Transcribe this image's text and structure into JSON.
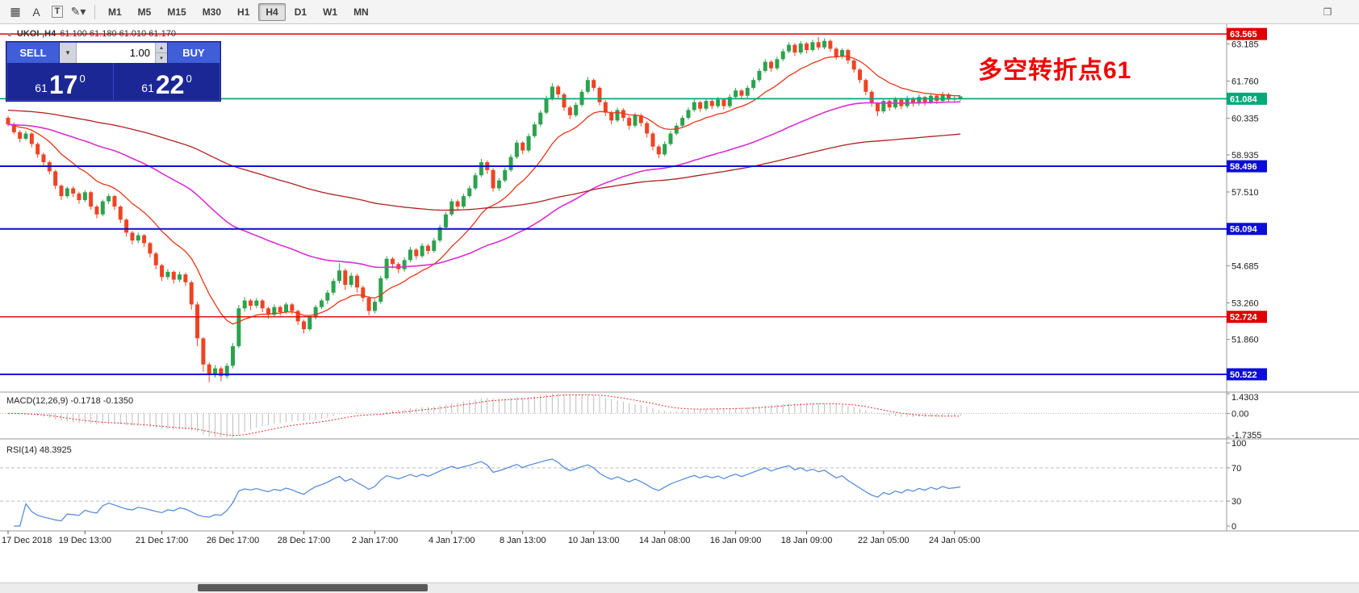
{
  "toolbar": {
    "icons": [
      {
        "name": "chart-grid-icon",
        "glyph": "▦",
        "boxed": false
      },
      {
        "name": "text-label-tool-icon",
        "glyph": "A",
        "boxed": false
      },
      {
        "name": "text-box-tool-icon",
        "glyph": "T",
        "boxed": true
      },
      {
        "name": "draw-tool-icon",
        "glyph": "✎▾",
        "boxed": false
      }
    ],
    "timeframes": [
      {
        "label": "M1",
        "active": false
      },
      {
        "label": "M5",
        "active": false
      },
      {
        "label": "M15",
        "active": false
      },
      {
        "label": "M30",
        "active": false
      },
      {
        "label": "H1",
        "active": false
      },
      {
        "label": "H4",
        "active": true
      },
      {
        "label": "D1",
        "active": false
      },
      {
        "label": "W1",
        "active": false
      },
      {
        "label": "MN",
        "active": false
      }
    ],
    "window_icon": "❐"
  },
  "chart": {
    "symbol": "UKOI-,H4",
    "marker_icon": "▲",
    "ohlc_text": "61.100 61.180 61.010 61.170",
    "annotation": "多空转折点61",
    "annotation_color": "#f20000",
    "trade_widget": {
      "sell_label": "SELL",
      "buy_label": "BUY",
      "volume": "1.00",
      "combo_icon": "▾",
      "up_icon": "▴",
      "down_icon": "▾",
      "sell_price": {
        "small": "61",
        "big": "17",
        "sup": "0"
      },
      "buy_price": {
        "small": "61",
        "big": "22",
        "sup": "0"
      }
    }
  },
  "chart_data": {
    "type": "candlestick",
    "symbol": "UKOI-,H4",
    "timeframe": "H4",
    "ylim": [
      49.84,
      63.94
    ],
    "candle_colors": {
      "up": "#2ca24e",
      "down": "#ef4323"
    },
    "candles": [
      [
        60.35,
        60.42,
        60.02,
        60.1
      ],
      [
        60.1,
        60.18,
        59.72,
        59.8
      ],
      [
        59.8,
        59.88,
        59.42,
        59.55
      ],
      [
        59.55,
        59.85,
        59.48,
        59.75
      ],
      [
        59.75,
        59.8,
        59.22,
        59.35
      ],
      [
        59.35,
        59.42,
        58.82,
        58.95
      ],
      [
        58.95,
        59.02,
        58.52,
        58.65
      ],
      [
        58.65,
        58.72,
        58.18,
        58.3
      ],
      [
        58.3,
        58.36,
        57.62,
        57.75
      ],
      [
        57.75,
        57.8,
        57.2,
        57.35
      ],
      [
        57.35,
        57.72,
        57.28,
        57.65
      ],
      [
        57.65,
        57.73,
        57.32,
        57.45
      ],
      [
        57.45,
        57.52,
        57.06,
        57.2
      ],
      [
        57.2,
        57.58,
        57.12,
        57.5
      ],
      [
        57.5,
        57.55,
        56.82,
        56.95
      ],
      [
        56.95,
        57.02,
        56.5,
        56.65
      ],
      [
        56.65,
        57.22,
        56.58,
        57.15
      ],
      [
        57.15,
        57.44,
        57.05,
        57.35
      ],
      [
        57.35,
        57.4,
        56.82,
        56.95
      ],
      [
        56.95,
        57.0,
        56.32,
        56.45
      ],
      [
        56.45,
        56.5,
        55.8,
        55.95
      ],
      [
        55.95,
        56.02,
        55.5,
        55.65
      ],
      [
        55.65,
        55.95,
        55.55,
        55.85
      ],
      [
        55.85,
        55.9,
        55.4,
        55.55
      ],
      [
        55.55,
        55.6,
        55.0,
        55.15
      ],
      [
        55.15,
        55.22,
        54.55,
        54.7
      ],
      [
        54.7,
        54.76,
        54.1,
        54.25
      ],
      [
        54.25,
        54.55,
        54.15,
        54.45
      ],
      [
        54.45,
        54.5,
        54.0,
        54.15
      ],
      [
        54.15,
        54.46,
        54.05,
        54.35
      ],
      [
        54.35,
        54.42,
        53.9,
        54.05
      ],
      [
        54.05,
        54.12,
        53.0,
        53.2
      ],
      [
        53.2,
        53.3,
        51.6,
        51.9
      ],
      [
        51.9,
        51.95,
        50.62,
        50.9
      ],
      [
        50.9,
        50.98,
        50.22,
        50.55
      ],
      [
        50.55,
        50.88,
        50.4,
        50.75
      ],
      [
        50.75,
        50.82,
        50.25,
        50.45
      ],
      [
        50.45,
        50.95,
        50.35,
        50.85
      ],
      [
        50.85,
        51.72,
        50.75,
        51.6
      ],
      [
        51.6,
        53.18,
        51.52,
        53.05
      ],
      [
        53.05,
        53.48,
        52.92,
        53.35
      ],
      [
        53.35,
        53.42,
        52.98,
        53.15
      ],
      [
        53.15,
        53.45,
        53.05,
        53.35
      ],
      [
        53.35,
        53.4,
        52.9,
        53.05
      ],
      [
        53.05,
        53.12,
        52.65,
        52.8
      ],
      [
        52.8,
        53.2,
        52.72,
        53.1
      ],
      [
        53.1,
        53.16,
        52.76,
        52.9
      ],
      [
        52.9,
        53.28,
        52.82,
        53.2
      ],
      [
        53.2,
        53.26,
        52.82,
        52.95
      ],
      [
        52.95,
        53.0,
        52.42,
        52.55
      ],
      [
        52.55,
        52.62,
        52.08,
        52.25
      ],
      [
        52.25,
        52.78,
        52.18,
        52.7
      ],
      [
        52.7,
        53.18,
        52.62,
        53.1
      ],
      [
        53.1,
        53.42,
        53.02,
        53.35
      ],
      [
        53.35,
        53.75,
        53.22,
        53.65
      ],
      [
        53.65,
        54.2,
        53.55,
        54.1
      ],
      [
        54.1,
        54.78,
        54.0,
        54.5
      ],
      [
        54.5,
        54.58,
        53.75,
        53.95
      ],
      [
        53.95,
        54.42,
        53.85,
        54.3
      ],
      [
        54.3,
        54.38,
        53.66,
        53.85
      ],
      [
        53.85,
        53.92,
        53.3,
        53.45
      ],
      [
        53.45,
        53.52,
        52.78,
        52.95
      ],
      [
        52.95,
        53.4,
        52.85,
        53.3
      ],
      [
        53.3,
        54.3,
        53.22,
        54.2
      ],
      [
        54.2,
        55.05,
        54.12,
        54.95
      ],
      [
        54.95,
        55.02,
        54.58,
        54.75
      ],
      [
        54.75,
        54.82,
        54.4,
        54.55
      ],
      [
        54.55,
        55.0,
        54.45,
        54.9
      ],
      [
        54.9,
        55.4,
        54.82,
        55.3
      ],
      [
        55.3,
        55.36,
        54.92,
        55.05
      ],
      [
        55.05,
        55.55,
        54.98,
        55.45
      ],
      [
        55.45,
        55.52,
        55.12,
        55.25
      ],
      [
        55.25,
        55.75,
        55.18,
        55.65
      ],
      [
        55.65,
        56.25,
        55.58,
        56.15
      ],
      [
        56.15,
        56.75,
        56.08,
        56.65
      ],
      [
        56.65,
        57.25,
        56.58,
        57.15
      ],
      [
        57.15,
        57.22,
        56.8,
        56.95
      ],
      [
        56.95,
        57.45,
        56.88,
        57.35
      ],
      [
        57.35,
        57.75,
        57.28,
        57.65
      ],
      [
        57.65,
        58.25,
        57.58,
        58.15
      ],
      [
        58.15,
        58.78,
        58.08,
        58.65
      ],
      [
        58.65,
        58.72,
        58.2,
        58.35
      ],
      [
        58.35,
        58.42,
        57.52,
        57.65
      ],
      [
        57.65,
        58.05,
        57.55,
        57.95
      ],
      [
        57.95,
        58.45,
        57.88,
        58.35
      ],
      [
        58.35,
        58.95,
        58.28,
        58.85
      ],
      [
        58.85,
        59.5,
        58.78,
        59.4
      ],
      [
        59.4,
        59.46,
        58.95,
        59.1
      ],
      [
        59.1,
        59.75,
        59.02,
        59.65
      ],
      [
        59.65,
        60.2,
        59.58,
        60.1
      ],
      [
        60.1,
        60.65,
        60.02,
        60.55
      ],
      [
        60.55,
        61.2,
        60.48,
        61.1
      ],
      [
        61.1,
        61.68,
        61.02,
        61.55
      ],
      [
        61.55,
        61.62,
        61.1,
        61.25
      ],
      [
        61.25,
        61.32,
        60.62,
        60.75
      ],
      [
        60.75,
        60.82,
        60.3,
        60.45
      ],
      [
        60.45,
        60.95,
        60.38,
        60.85
      ],
      [
        60.85,
        61.45,
        60.78,
        61.35
      ],
      [
        61.35,
        61.92,
        61.28,
        61.8
      ],
      [
        61.8,
        61.86,
        61.38,
        61.5
      ],
      [
        61.5,
        61.56,
        60.82,
        60.95
      ],
      [
        60.95,
        61.02,
        60.42,
        60.55
      ],
      [
        60.55,
        60.62,
        60.1,
        60.25
      ],
      [
        60.25,
        60.75,
        60.18,
        60.65
      ],
      [
        60.65,
        60.72,
        60.22,
        60.35
      ],
      [
        60.35,
        60.42,
        59.9,
        60.05
      ],
      [
        60.05,
        60.55,
        59.98,
        60.45
      ],
      [
        60.45,
        60.52,
        60.02,
        60.15
      ],
      [
        60.15,
        60.22,
        59.6,
        59.75
      ],
      [
        59.75,
        59.82,
        59.1,
        59.25
      ],
      [
        59.25,
        59.32,
        58.8,
        58.95
      ],
      [
        58.95,
        59.45,
        58.88,
        59.35
      ],
      [
        59.35,
        59.85,
        59.28,
        59.75
      ],
      [
        59.75,
        60.15,
        59.68,
        60.05
      ],
      [
        60.05,
        60.45,
        59.98,
        60.35
      ],
      [
        60.35,
        60.75,
        60.28,
        60.65
      ],
      [
        60.65,
        61.05,
        60.58,
        60.95
      ],
      [
        60.95,
        61.0,
        60.58,
        60.7
      ],
      [
        60.7,
        61.1,
        60.62,
        61.0
      ],
      [
        61.0,
        61.06,
        60.68,
        60.8
      ],
      [
        60.8,
        61.15,
        60.72,
        61.05
      ],
      [
        61.05,
        61.1,
        60.68,
        60.8
      ],
      [
        60.8,
        61.25,
        60.72,
        61.15
      ],
      [
        61.15,
        61.5,
        61.08,
        61.4
      ],
      [
        61.4,
        61.46,
        61.08,
        61.2
      ],
      [
        61.2,
        61.6,
        61.12,
        61.5
      ],
      [
        61.5,
        61.9,
        61.42,
        61.8
      ],
      [
        61.8,
        62.25,
        61.72,
        62.15
      ],
      [
        62.15,
        62.6,
        62.08,
        62.5
      ],
      [
        62.5,
        62.56,
        62.12,
        62.25
      ],
      [
        62.25,
        62.7,
        62.18,
        62.6
      ],
      [
        62.6,
        63.0,
        62.52,
        62.9
      ],
      [
        62.9,
        63.25,
        62.82,
        63.15
      ],
      [
        63.15,
        63.22,
        62.72,
        62.85
      ],
      [
        62.85,
        63.3,
        62.78,
        63.2
      ],
      [
        63.2,
        63.26,
        62.82,
        62.95
      ],
      [
        62.95,
        63.35,
        62.88,
        63.25
      ],
      [
        63.25,
        63.45,
        62.95,
        63.05
      ],
      [
        63.05,
        63.4,
        62.98,
        63.3
      ],
      [
        63.3,
        63.36,
        62.88,
        63.0
      ],
      [
        63.0,
        63.06,
        62.58,
        62.7
      ],
      [
        62.7,
        63.02,
        62.62,
        62.95
      ],
      [
        62.95,
        63.0,
        62.42,
        62.55
      ],
      [
        62.55,
        62.62,
        62.08,
        62.2
      ],
      [
        62.2,
        62.26,
        61.68,
        61.8
      ],
      [
        61.8,
        61.86,
        61.22,
        61.35
      ],
      [
        61.35,
        61.42,
        60.78,
        60.9
      ],
      [
        60.9,
        60.96,
        60.42,
        60.6
      ],
      [
        60.6,
        61.1,
        60.52,
        61.0
      ],
      [
        61.0,
        61.06,
        60.62,
        60.75
      ],
      [
        60.75,
        61.15,
        60.68,
        61.05
      ],
      [
        61.05,
        61.1,
        60.68,
        60.8
      ],
      [
        60.8,
        61.2,
        60.72,
        61.1
      ],
      [
        61.1,
        61.16,
        60.78,
        60.9
      ],
      [
        60.9,
        61.25,
        60.82,
        61.15
      ],
      [
        61.15,
        61.2,
        60.82,
        60.95
      ],
      [
        60.95,
        61.3,
        60.88,
        61.2
      ],
      [
        61.2,
        61.26,
        60.88,
        61.0
      ],
      [
        61.0,
        61.35,
        60.92,
        61.25
      ],
      [
        61.25,
        61.3,
        60.95,
        61.05
      ],
      [
        61.05,
        61.2,
        60.95,
        61.1
      ],
      [
        61.1,
        61.18,
        61.01,
        61.17
      ]
    ],
    "overlays": [
      {
        "name": "ma-fast",
        "method": "ema",
        "period": 14,
        "color": "#e63617",
        "width": 1.3,
        "seed_offset": 0
      },
      {
        "name": "ma-mid",
        "method": "ema",
        "period": 60,
        "color": "#da2fd2",
        "width": 1.6,
        "seed_offset": 0
      },
      {
        "name": "ma-slow",
        "method": "ema",
        "period": 150,
        "color": "#b02020",
        "width": 1.3,
        "seed_offset": 0.55
      }
    ],
    "levels": [
      {
        "label": "63.565",
        "price": 63.565,
        "color": "#dd0000",
        "width": 1.6
      },
      {
        "label": "61.084",
        "price": 61.084,
        "color": "#00a87b",
        "width": 1.8
      },
      {
        "label": "58.496",
        "price": 58.496,
        "color": "#0d0dd6",
        "width": 2
      },
      {
        "label": "56.094",
        "price": 56.094,
        "color": "#0d0dd6",
        "width": 2
      },
      {
        "label": "52.724",
        "price": 52.724,
        "color": "#dd0000",
        "width": 1.4
      },
      {
        "label": "50.522",
        "price": 50.522,
        "color": "#0d0dd6",
        "width": 2
      }
    ],
    "price_ticks": [
      "63.185",
      "61.760",
      "60.335",
      "58.935",
      "57.510",
      "54.685",
      "53.260",
      "51.860"
    ],
    "time_axis": [
      {
        "label": "17 Dec 2018",
        "bar": 0
      },
      {
        "label": "19 Dec 13:00",
        "bar": 13
      },
      {
        "label": "21 Dec 17:00",
        "bar": 26
      },
      {
        "label": "26 Dec 17:00",
        "bar": 38
      },
      {
        "label": "28 Dec 17:00",
        "bar": 50
      },
      {
        "label": "2 Jan 17:00",
        "bar": 62
      },
      {
        "label": "4 Jan 17:00",
        "bar": 75
      },
      {
        "label": "8 Jan 13:00",
        "bar": 87
      },
      {
        "label": "10 Jan 13:00",
        "bar": 99
      },
      {
        "label": "14 Jan 08:00",
        "bar": 111
      },
      {
        "label": "16 Jan 09:00",
        "bar": 123
      },
      {
        "label": "18 Jan 09:00",
        "bar": 135
      },
      {
        "label": "22 Jan 05:00",
        "bar": 148
      },
      {
        "label": "24 Jan 05:00",
        "bar": 160
      }
    ],
    "macd": {
      "title": "MACD(12,26,9)",
      "values": "-0.1718 -0.1350",
      "fast": 12,
      "slow": 26,
      "signal": 9,
      "axis_labels": [
        "1.4303",
        "0.00",
        "-1.7355"
      ],
      "range": [
        -1.7355,
        1.4303
      ],
      "histogram_color": "#bdbdbd",
      "signal_color": "#e03030"
    },
    "rsi": {
      "title": "RSI(14)",
      "value": "48.3925",
      "period": 14,
      "axis_labels": [
        "100",
        "70",
        "30",
        "0"
      ],
      "range": [
        0,
        100
      ],
      "levels": [
        70,
        30
      ],
      "color": "#4e86d8"
    }
  }
}
